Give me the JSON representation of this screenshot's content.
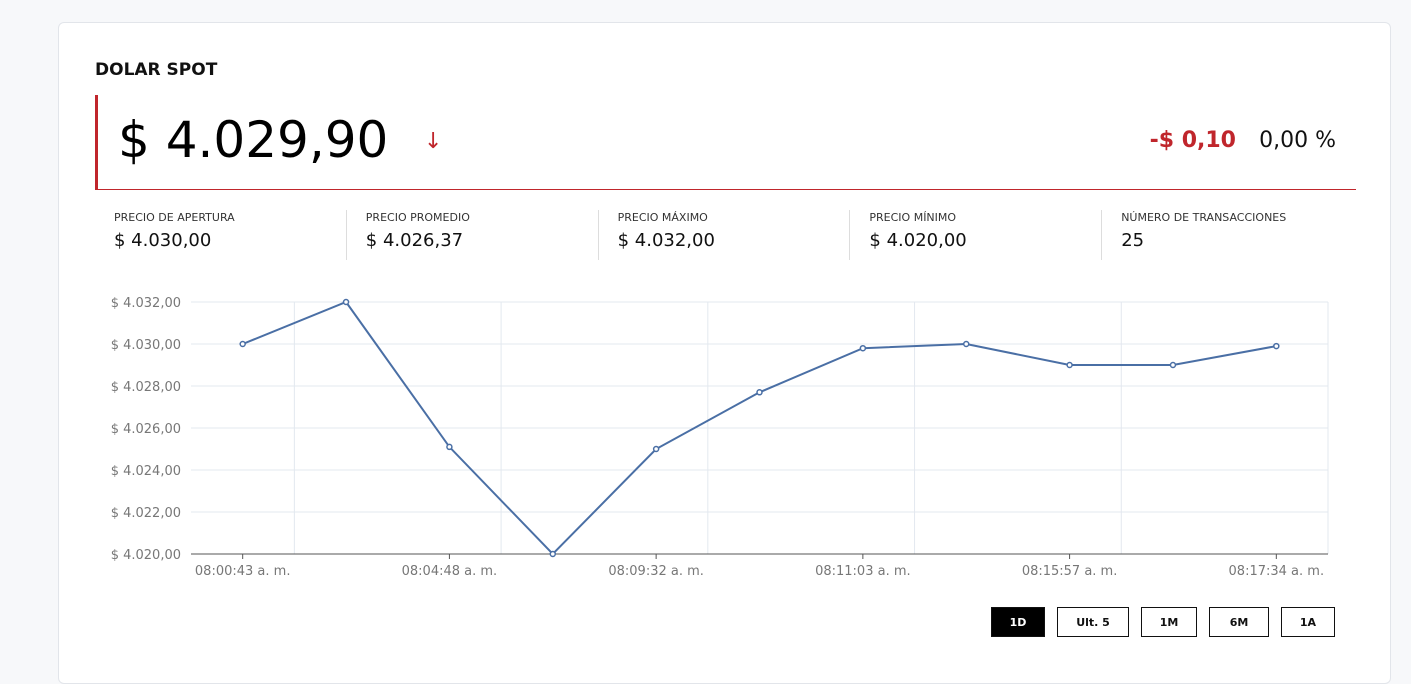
{
  "title": "DOLAR SPOT",
  "price": "$ 4.029,90",
  "trend_icon": "arrow-down-icon",
  "change": "-$ 0,10",
  "change_pct": "0,00 %",
  "colors": {
    "negative": "#c0262c",
    "line": "#4a6fa5"
  },
  "stats": [
    {
      "label": "PRECIO DE APERTURA",
      "value": "$ 4.030,00"
    },
    {
      "label": "PRECIO PROMEDIO",
      "value": "$ 4.026,37"
    },
    {
      "label": "PRECIO MÁXIMO",
      "value": "$ 4.032,00"
    },
    {
      "label": "PRECIO MÍNIMO",
      "value": "$ 4.020,00"
    },
    {
      "label": "NÚMERO DE TRANSACCIONES",
      "value": "25"
    }
  ],
  "ranges": [
    "1D",
    "Ult. 5",
    "1M",
    "6M",
    "1A"
  ],
  "active_range": "1D",
  "chart_data": {
    "type": "line",
    "ylim": [
      4020,
      4032
    ],
    "yticks": [
      "$ 4.020,00",
      "$ 4.022,00",
      "$ 4.024,00",
      "$ 4.026,00",
      "$ 4.028,00",
      "$ 4.030,00",
      "$ 4.032,00"
    ],
    "xtick_labels": [
      "08:00:43 a. m.",
      "08:04:48 a. m.",
      "08:09:32 a. m.",
      "08:11:03 a. m.",
      "08:15:57 a. m.",
      "08:17:34 a. m."
    ],
    "xtick_indices": [
      0,
      2,
      4,
      6,
      8,
      10
    ],
    "values": [
      4030.0,
      4032.0,
      4025.1,
      4020.0,
      4025.0,
      4027.7,
      4029.8,
      4030.0,
      4029.0,
      4029.0,
      4029.9
    ],
    "grid": true
  }
}
